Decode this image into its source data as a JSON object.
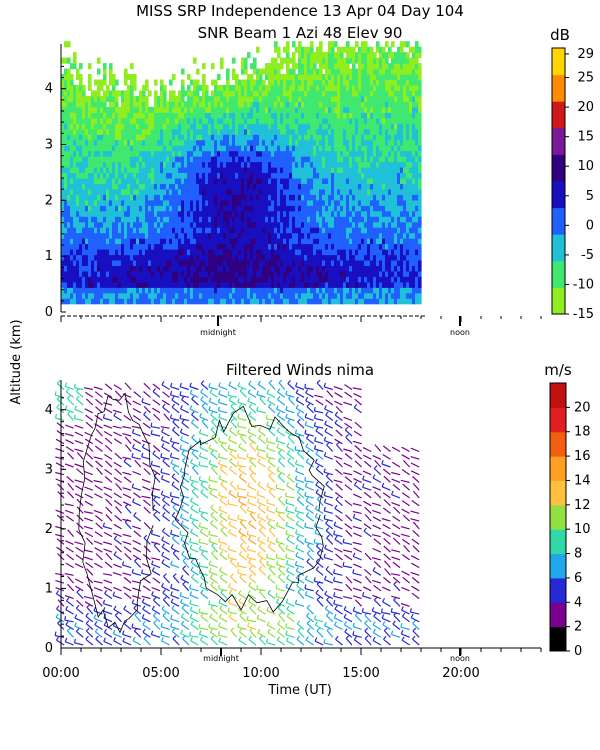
{
  "header": {
    "title_line1": "MISS SRP Independence  13 Apr 04 Day 104",
    "title_line2": "SNR Beam 1 Azi  48 Elev 90"
  },
  "y_axis_label": "Altitude (km)",
  "x_axis_label": "Time (UT)",
  "markers": {
    "midnight": "midnight",
    "noon": "noon"
  },
  "colors": {
    "snr_scale": [
      "#90ee20",
      "#40e870",
      "#20c0d8",
      "#2060ff",
      "#1810c0",
      "#300080",
      "#7a1a9a",
      "#d01818",
      "#ff8c00",
      "#ffd700"
    ],
    "wind_scale": [
      "#000000",
      "#7a0090",
      "#2828d8",
      "#20a8e8",
      "#30d8a8",
      "#90e040",
      "#ffc040",
      "#ffa020",
      "#f06010",
      "#e02020",
      "#c01010"
    ]
  },
  "chart_data": [
    {
      "type": "heatmap",
      "name": "snr",
      "title": "SNR Beam 1 Azi  48 Elev 90",
      "ylabel": "Altitude (km)",
      "ylim": [
        0,
        4.8
      ],
      "y_ticks": [
        "0",
        "1",
        "2",
        "3",
        "4"
      ],
      "xlim_hours": [
        0,
        24
      ],
      "data_end_hour": 18,
      "colorbar": {
        "unit": "dB",
        "min": -15,
        "max": 30,
        "ticks": [
          "29",
          "25",
          "20",
          "15",
          "10",
          "5",
          "0",
          "-5",
          "-10",
          "-15"
        ]
      },
      "markers": [
        "midnight",
        "noon"
      ]
    },
    {
      "type": "scatter",
      "name": "winds",
      "title": "Filtered Winds nima",
      "ylabel": "Altitude (km)",
      "xlabel": "Time (UT)",
      "ylim": [
        0,
        4.5
      ],
      "y_ticks": [
        "0",
        "1",
        "2",
        "3",
        "4"
      ],
      "x_ticks": [
        "00:00",
        "05:00",
        "10:00",
        "15:00",
        "20:00"
      ],
      "xlim_hours": [
        0,
        24
      ],
      "data_end_hour": 18,
      "colorbar": {
        "unit": "m/s",
        "min": 0,
        "max": 22,
        "ticks": [
          "20",
          "18",
          "16",
          "14",
          "12",
          "10",
          "8",
          "6",
          "4",
          "2",
          "0"
        ]
      },
      "markers": [
        "midnight",
        "noon"
      ]
    }
  ]
}
